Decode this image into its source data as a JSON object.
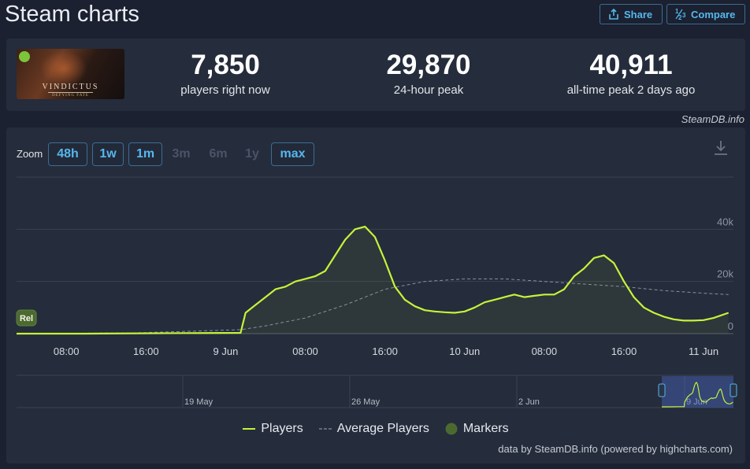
{
  "header": {
    "title": "Steam charts",
    "share_label": "Share",
    "compare_label": "Compare"
  },
  "game": {
    "logo_text": "VINDICTUS",
    "logo_subtitle": "DEFYING FATE"
  },
  "stats": {
    "now_value": "7,850",
    "now_label": "players right now",
    "peak24_value": "29,870",
    "peak24_label": "24-hour peak",
    "alltime_value": "40,911",
    "alltime_label": "all-time peak 2 days ago"
  },
  "credit_top": "SteamDB.info",
  "zoom": {
    "label": "Zoom",
    "buttons": [
      {
        "label": "48h",
        "active": true
      },
      {
        "label": "1w",
        "active": true
      },
      {
        "label": "1m",
        "active": true
      },
      {
        "label": "3m",
        "active": false
      },
      {
        "label": "6m",
        "active": false
      },
      {
        "label": "1y",
        "active": false
      },
      {
        "label": "max",
        "active": true
      }
    ]
  },
  "chart_data": {
    "type": "line",
    "title": "",
    "xlabel": "",
    "ylabel": "",
    "x_tick_labels": [
      "08:00",
      "16:00",
      "9 Jun",
      "08:00",
      "16:00",
      "10 Jun",
      "08:00",
      "16:00",
      "11 Jun"
    ],
    "x_tick_hours": [
      8,
      16,
      24,
      32,
      40,
      48,
      56,
      64,
      72
    ],
    "x_range_hours": [
      3,
      75
    ],
    "y_tick_labels": [
      "0",
      "20k",
      "40k"
    ],
    "y_ticks": [
      0,
      20000,
      40000
    ],
    "ylim": [
      0,
      60000
    ],
    "grid": true,
    "legend_position": "bottom-center",
    "series": [
      {
        "name": "Players",
        "color": "#c4f33a",
        "points": [
          [
            3,
            0
          ],
          [
            10,
            0
          ],
          [
            20,
            200
          ],
          [
            25.5,
            300
          ],
          [
            26,
            8000
          ],
          [
            27,
            11000
          ],
          [
            28,
            14000
          ],
          [
            29,
            17000
          ],
          [
            30,
            18000
          ],
          [
            31,
            20000
          ],
          [
            32,
            21000
          ],
          [
            33,
            22000
          ],
          [
            34,
            24000
          ],
          [
            35,
            30000
          ],
          [
            36,
            36000
          ],
          [
            37,
            40000
          ],
          [
            38,
            41000
          ],
          [
            39,
            37000
          ],
          [
            40,
            28000
          ],
          [
            41,
            18000
          ],
          [
            42,
            13000
          ],
          [
            43,
            10500
          ],
          [
            44,
            9000
          ],
          [
            45,
            8500
          ],
          [
            46,
            8200
          ],
          [
            47,
            8000
          ],
          [
            48,
            8500
          ],
          [
            49,
            10000
          ],
          [
            50,
            12000
          ],
          [
            51,
            13000
          ],
          [
            52,
            14000
          ],
          [
            53,
            15000
          ],
          [
            54,
            14000
          ],
          [
            55,
            14500
          ],
          [
            56,
            15000
          ],
          [
            57,
            15000
          ],
          [
            58,
            17000
          ],
          [
            59,
            22000
          ],
          [
            60,
            25000
          ],
          [
            61,
            29000
          ],
          [
            62,
            30000
          ],
          [
            63,
            27000
          ],
          [
            64,
            20000
          ],
          [
            65,
            14000
          ],
          [
            66,
            10000
          ],
          [
            67,
            8000
          ],
          [
            68,
            6500
          ],
          [
            69,
            5500
          ],
          [
            70,
            5000
          ],
          [
            71,
            5000
          ],
          [
            72,
            5200
          ],
          [
            73,
            6000
          ],
          [
            74.5,
            8000
          ]
        ]
      },
      {
        "name": "Average Players",
        "color": "#8a909c",
        "points": [
          [
            3,
            0
          ],
          [
            15,
            300
          ],
          [
            25.5,
            1500
          ],
          [
            28,
            3000
          ],
          [
            32,
            6000
          ],
          [
            36,
            11000
          ],
          [
            40,
            17000
          ],
          [
            44,
            20000
          ],
          [
            48,
            21000
          ],
          [
            52,
            21000
          ],
          [
            56,
            20000
          ],
          [
            60,
            19000
          ],
          [
            64,
            18000
          ],
          [
            68,
            16500
          ],
          [
            72,
            15500
          ],
          [
            74.5,
            15000
          ]
        ]
      },
      {
        "name": "Markers",
        "color": "#4c6a30",
        "marker_labels": [
          "Rel"
        ]
      }
    ],
    "navigator": {
      "tick_labels": [
        "19 May",
        "26 May",
        "2 Jun",
        "9 Jun"
      ]
    }
  },
  "footer_credit": "data by SteamDB.info (powered by highcharts.com)"
}
